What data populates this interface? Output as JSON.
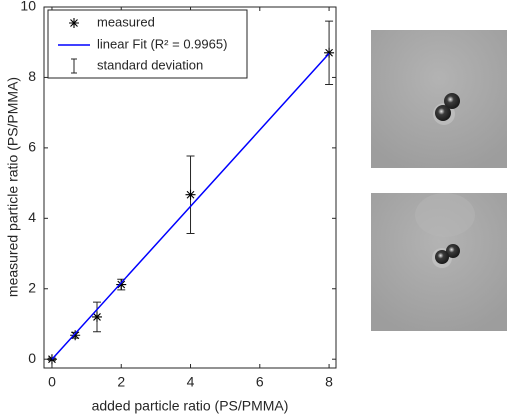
{
  "chart_data": {
    "type": "scatter",
    "xlabel": "added particle ratio (PS/PMMA)",
    "ylabel": "measured particle ratio (PS/PMMA)",
    "xlim": [
      -0.23,
      8.2
    ],
    "xticks": [
      0,
      2,
      4,
      6,
      8
    ],
    "ylim": [
      -0.25,
      10
    ],
    "yticks": [
      0,
      2,
      4,
      6,
      8,
      10
    ],
    "series": [
      {
        "name": "measured",
        "type": "scatter",
        "color": "#000000",
        "x": [
          0,
          0.67,
          1.3,
          2.0,
          4.0,
          8.0
        ],
        "values": [
          0,
          0.68,
          1.2,
          2.12,
          4.67,
          8.7
        ],
        "errors": [
          0.03,
          0.08,
          0.42,
          0.15,
          1.1,
          0.9
        ]
      },
      {
        "name": "linear Fit (R² = 0.9965)",
        "type": "line",
        "color": "#0000ff",
        "x": [
          0,
          8
        ],
        "values": [
          0,
          8.68
        ]
      }
    ],
    "errorbar_legend": "standard deviation",
    "legend": "upper left"
  }
}
